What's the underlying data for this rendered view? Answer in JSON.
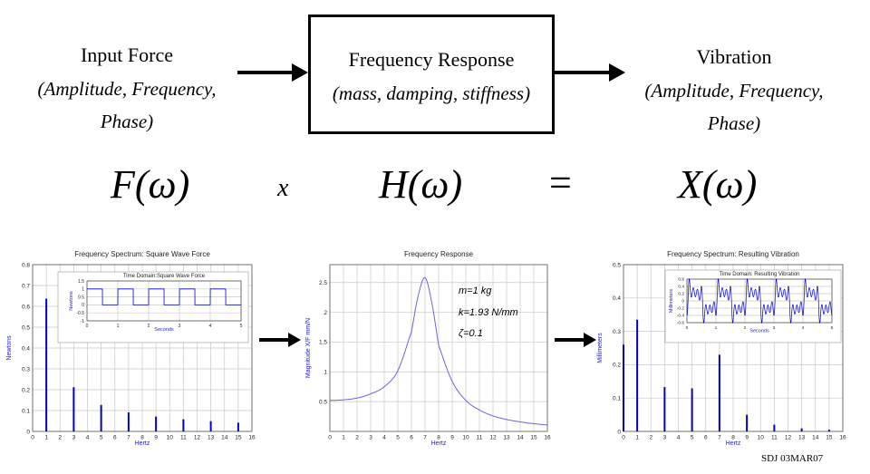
{
  "diagram": {
    "input": {
      "title": "Input Force",
      "line1": "(Amplitude, Frequency,",
      "line2": "Phase)"
    },
    "system": {
      "title": "Frequency Response",
      "line1": "(mass, damping, stiffness)"
    },
    "output": {
      "title": "Vibration",
      "line1": "(Amplitude, Frequency,",
      "line2": "Phase)"
    },
    "equation": {
      "left": "F(ω)",
      "times": "x",
      "middle": "H(ω)",
      "equals": "=",
      "right": "X(ω)"
    },
    "credit": "SDJ 03MAR07"
  },
  "colors": {
    "series": "#0000cc",
    "response": "#6666dd",
    "grid": "#c8c8c8",
    "axis": "#555555",
    "label": "#2222cc"
  },
  "chart_data": [
    {
      "type": "bar",
      "title": "Frequency Spectrum: Square Wave Force",
      "xlabel": "Hertz",
      "ylabel": "Newtons",
      "xlim": [
        0,
        16
      ],
      "ylim": [
        0,
        0.8
      ],
      "xticks": [
        0,
        1,
        2,
        3,
        4,
        5,
        6,
        7,
        8,
        9,
        10,
        11,
        12,
        13,
        14,
        15,
        16
      ],
      "yticks": [
        0,
        0.1,
        0.2,
        0.3,
        0.4,
        0.5,
        0.6,
        0.7,
        0.8
      ],
      "x": [
        1,
        3,
        5,
        7,
        9,
        11,
        13,
        15
      ],
      "values": [
        0.637,
        0.212,
        0.127,
        0.091,
        0.071,
        0.058,
        0.049,
        0.042
      ],
      "inset": {
        "type": "line",
        "title": "Time Domain:Square Wave Force",
        "xlabel": "Seconds",
        "ylabel": "Newtons",
        "xlim": [
          0,
          5
        ],
        "ylim": [
          -1,
          1.5
        ],
        "xticks": [
          0,
          1,
          2,
          3,
          4,
          5
        ],
        "yticks": [
          -1,
          -0.5,
          0,
          0.5,
          1,
          1.5
        ],
        "frequency_hz": 1,
        "amplitude": 0.5
      }
    },
    {
      "type": "line",
      "title": "Frequency Response",
      "xlabel": "Hertz",
      "ylabel": "Magnitude X/F  mm/N",
      "xlim": [
        0,
        16
      ],
      "ylim": [
        0,
        2.8
      ],
      "xticks": [
        0,
        1,
        2,
        3,
        4,
        5,
        6,
        7,
        8,
        9,
        10,
        11,
        12,
        13,
        14,
        15,
        16
      ],
      "yticks": [
        0.5,
        1,
        1.5,
        2,
        2.5
      ],
      "params": {
        "m_label": "m=1 kg",
        "k_label": "k=1.93 N/mm",
        "zeta_label": "ζ=0.1"
      },
      "x": [
        0,
        1,
        2,
        3,
        4,
        5,
        6,
        6.5,
        7,
        7.5,
        8,
        9,
        10,
        11,
        12,
        13,
        14,
        15,
        16
      ],
      "values": [
        0.52,
        0.53,
        0.56,
        0.63,
        0.75,
        1.02,
        1.67,
        2.28,
        2.58,
        2.16,
        1.45,
        0.84,
        0.52,
        0.36,
        0.26,
        0.2,
        0.16,
        0.13,
        0.11
      ]
    },
    {
      "type": "bar",
      "title": "Frequency Spectrum: Resulting Vibration",
      "xlabel": "Hertz",
      "ylabel": "Millimeters",
      "xlim": [
        0,
        16
      ],
      "ylim": [
        0,
        0.5
      ],
      "xticks": [
        0,
        1,
        2,
        3,
        4,
        5,
        6,
        7,
        8,
        9,
        10,
        11,
        12,
        13,
        14,
        15,
        16
      ],
      "yticks": [
        0,
        0.1,
        0.2,
        0.3,
        0.4,
        0.5
      ],
      "x": [
        0,
        1,
        3,
        5,
        7,
        9,
        11,
        13,
        15
      ],
      "values": [
        0.26,
        0.335,
        0.133,
        0.129,
        0.23,
        0.05,
        0.02,
        0.009,
        0.005
      ],
      "inset": {
        "type": "line",
        "title": "Time Domain: Resulting Vibration",
        "xlabel": "Seconds",
        "ylabel": "Millimeters",
        "xlim": [
          0,
          5
        ],
        "ylim": [
          -0.6,
          0.6
        ],
        "xticks": [
          0,
          1,
          2,
          3,
          4,
          5
        ],
        "yticks": [
          -0.6,
          -0.4,
          -0.2,
          0,
          0.2,
          0.4,
          0.6
        ]
      }
    }
  ]
}
